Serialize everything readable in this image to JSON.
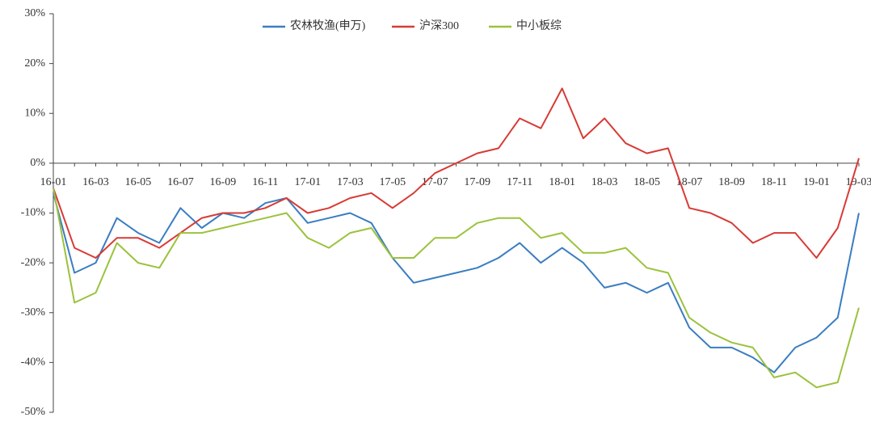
{
  "chart_data": {
    "type": "line",
    "categories": [
      "16-01",
      null,
      "16-03",
      null,
      "16-05",
      null,
      "16-07",
      null,
      "16-09",
      null,
      "16-11",
      null,
      "17-01",
      null,
      "17-03",
      null,
      "17-05",
      null,
      "17-07",
      null,
      "17-09",
      null,
      "17-11",
      null,
      "18-01",
      null,
      "18-03",
      null,
      "18-05",
      null,
      "18-07",
      null,
      "18-09",
      null,
      "18-11",
      null,
      "19-01",
      null,
      "19-03"
    ],
    "series": [
      {
        "name": "农林牧渔(申万)",
        "color": "#3a7dc2",
        "values": [
          -6,
          -22,
          -20,
          -11,
          -14,
          -16,
          -9,
          -13,
          -10,
          -11,
          -8,
          -7,
          -12,
          -11,
          -10,
          -12,
          -19,
          -24,
          -23,
          -22,
          -21,
          -19,
          -16,
          -20,
          -17,
          -20,
          -25,
          -24,
          -26,
          -24,
          -33,
          -37,
          -37,
          -39,
          -42,
          -37,
          -35,
          -31,
          -10
        ]
      },
      {
        "name": "沪深300",
        "color": "#d83a35",
        "values": [
          -5,
          -17,
          -19,
          -15,
          -15,
          -17,
          -14,
          -11,
          -10,
          -10,
          -9,
          -7,
          -10,
          -9,
          -7,
          -6,
          -9,
          -6,
          -2,
          0,
          2,
          3,
          9,
          7,
          15,
          5,
          9,
          4,
          2,
          3,
          -9,
          -10,
          -12,
          -16,
          -14,
          -14,
          -19,
          -13,
          1
        ]
      },
      {
        "name": "中小板综",
        "color": "#9bc23c",
        "values": [
          -5,
          -28,
          -26,
          -16,
          -20,
          -21,
          -14,
          -14,
          -13,
          -12,
          -11,
          -10,
          -15,
          -17,
          -14,
          -13,
          -19,
          -19,
          -15,
          -15,
          -12,
          -11,
          -11,
          -15,
          -14,
          -18,
          -18,
          -17,
          -21,
          -22,
          -31,
          -34,
          -36,
          -37,
          -43,
          -42,
          -45,
          -44,
          -29
        ]
      }
    ],
    "ylim": [
      -50,
      30
    ],
    "yticks": [
      {
        "value": -50,
        "label": "-50%"
      },
      {
        "value": -40,
        "label": "-40%"
      },
      {
        "value": -30,
        "label": "-30%"
      },
      {
        "value": -20,
        "label": "-20%"
      },
      {
        "value": -10,
        "label": "-10%"
      },
      {
        "value": 0,
        "label": "0%"
      },
      {
        "value": 10,
        "label": "10%"
      },
      {
        "value": 20,
        "label": "20%"
      },
      {
        "value": 30,
        "label": "30%"
      }
    ],
    "legend": "top"
  }
}
